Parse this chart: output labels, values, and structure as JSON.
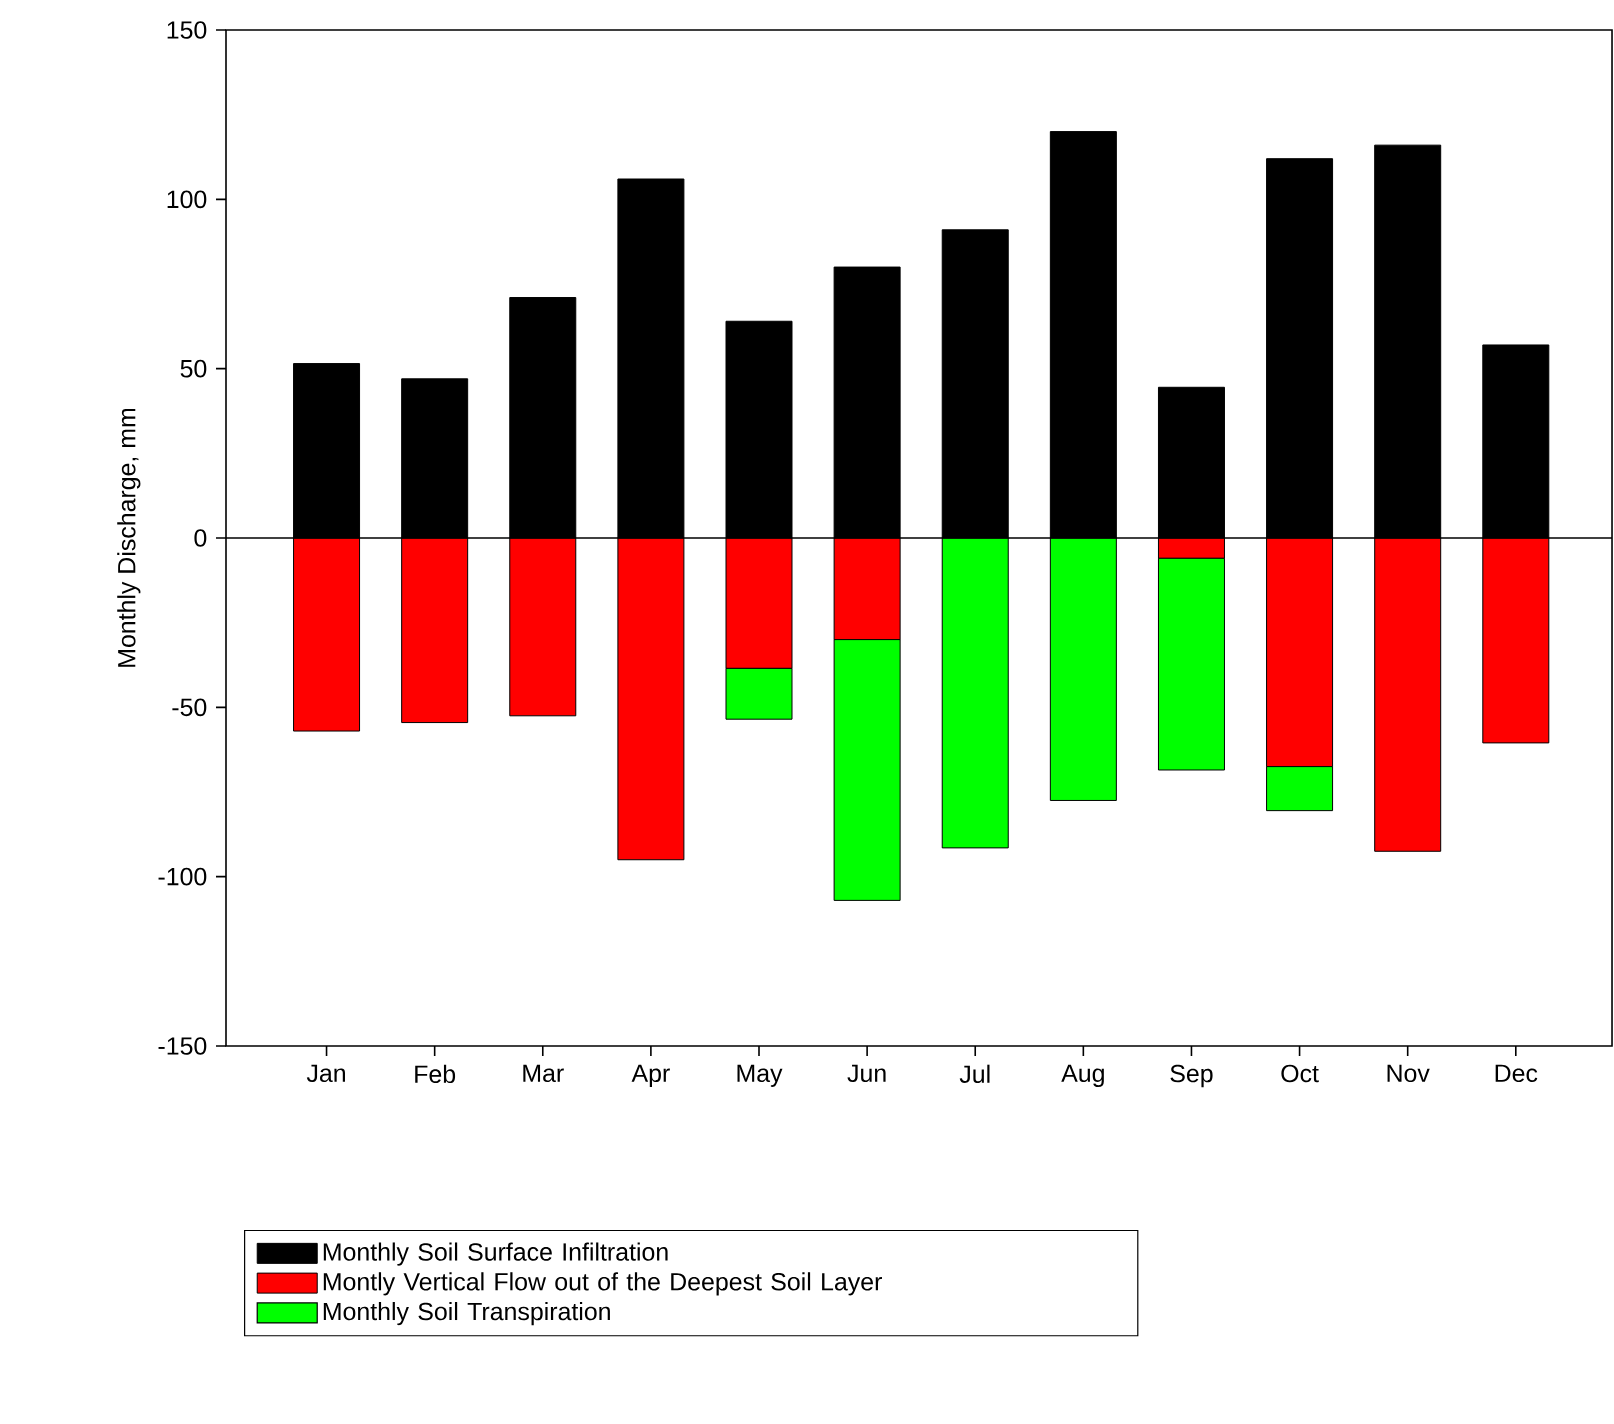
{
  "chart_data": {
    "type": "bar",
    "stacked": true,
    "ylabel": "Monthly Discharge, mm",
    "categories": [
      "Jan",
      "Feb",
      "Mar",
      "Apr",
      "May",
      "Jun",
      "Jul",
      "Aug",
      "Sep",
      "Oct",
      "Nov",
      "Dec"
    ],
    "series": [
      {
        "name": "Monthly Soil Surface Infiltration",
        "color": "#000000",
        "values": [
          51.5,
          47,
          71,
          106,
          64,
          80,
          91,
          120,
          44.5,
          112,
          116,
          57
        ]
      },
      {
        "name": "Montly Vertical Flow out of the Deepest Soil Layer",
        "color": "#ff0000",
        "values": [
          -57,
          -54.5,
          -52.5,
          -95,
          -38.5,
          -30,
          null,
          null,
          -6,
          -67.5,
          -92.5,
          -60.5
        ]
      },
      {
        "name": "Monthly Soil Transpiration",
        "color": "#00ff00",
        "values": [
          null,
          null,
          null,
          null,
          -15,
          -77,
          -91.5,
          -77.5,
          -62.5,
          -13,
          null,
          null
        ]
      }
    ],
    "ylim": [
      -150,
      150
    ],
    "yticks": [
      -150,
      -100,
      -50,
      0,
      50,
      100,
      150
    ],
    "ref_lines": [
      {
        "axis": "y",
        "value": 0
      }
    ],
    "legend": "bottom",
    "grid": false
  }
}
